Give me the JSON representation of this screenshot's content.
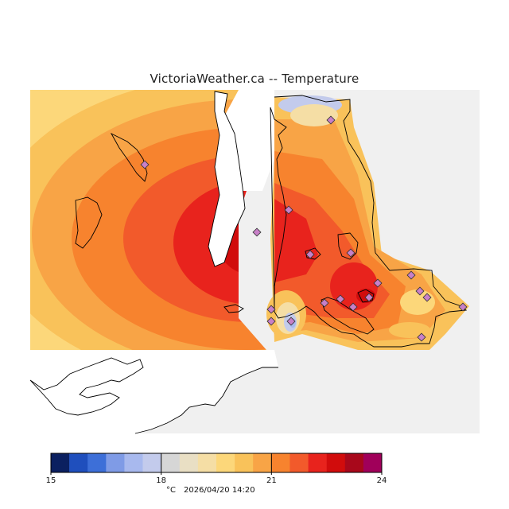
{
  "title": "VictoriaWeather.ca -- Temperature",
  "colorbar": {
    "colors": [
      "#0b2060",
      "#1f4fbd",
      "#3d6fd8",
      "#7f9be6",
      "#a8b9ee",
      "#c3cbec",
      "#d6d6d6",
      "#e9dfc4",
      "#f5dea5",
      "#fcd77a",
      "#f9c25a",
      "#f8a446",
      "#f7832e",
      "#f25a2b",
      "#e8231d",
      "#d10c0c",
      "#a8081b",
      "#a0005a"
    ],
    "ticks": [
      "15",
      "18",
      "21",
      "24"
    ],
    "unit": "°C",
    "timestamp": "2026/04/20  14:20"
  },
  "colors": {
    "no_data": "#f0f0f0",
    "land": "#ffffff",
    "coast": "#000000",
    "station": "#c880c8"
  }
}
